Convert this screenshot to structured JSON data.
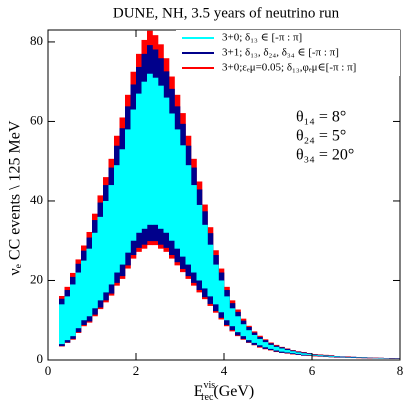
{
  "chart_data": {
    "type": "histogram",
    "title": "DUNE, NH, 3.5 years of neutrino run",
    "ylabel": "νₑ CC events \\ 125 MeV",
    "xlabel": {
      "base": "E",
      "sup": "vis",
      "sub": "rec",
      "unit": "(GeV)"
    },
    "annotations": [
      "θ₁₄ = 8°",
      "θ₂₄ = 5°",
      "θ₃₄ = 20°"
    ],
    "xlim": [
      0,
      8
    ],
    "xticks": [
      0,
      2,
      4,
      6,
      8
    ],
    "ylim": [
      0,
      83
    ],
    "yticks": [
      0,
      20,
      40,
      60,
      80
    ],
    "bins": [
      0.25,
      0.375,
      0.5,
      0.625,
      0.75,
      0.875,
      1,
      1.125,
      1.25,
      1.375,
      1.5,
      1.625,
      1.75,
      1.875,
      2,
      2.125,
      2.25,
      2.375,
      2.5,
      2.625,
      2.75,
      2.875,
      3,
      3.125,
      3.25,
      3.375,
      3.5,
      3.625,
      3.75,
      3.875,
      4,
      4.125,
      4.25,
      4.375,
      4.5,
      4.625,
      4.75,
      4.875,
      5,
      5.125,
      5.25,
      5.375,
      5.5,
      5.625,
      5.75,
      5.875,
      6,
      6.125,
      6.25,
      6.375,
      6.5,
      6.625,
      6.75,
      6.875,
      7,
      7.125,
      7.25,
      7.375,
      7.5,
      7.625,
      7.75,
      7.875,
      8
    ],
    "series": [
      {
        "name": "3+0; δ₁₃ ∈ [-π : π]",
        "color": "#00ffff",
        "upper": [
          14,
          16,
          19,
          22,
          25,
          28,
          32,
          36,
          40,
          44,
          49,
          53,
          58,
          63,
          67,
          70,
          72,
          71,
          69,
          66,
          62,
          58,
          54,
          49,
          44,
          39,
          34,
          29,
          24,
          20,
          16,
          13,
          11,
          9,
          7.5,
          6.3,
          5.3,
          4.5,
          3.8,
          3.3,
          2.9,
          2.5,
          2.2,
          1.9,
          1.7,
          1.5,
          1.3,
          1.2,
          1.1,
          1,
          0.9,
          0.8,
          0.75,
          0.7,
          0.65,
          0.6,
          0.55,
          0.5,
          0.5,
          0.45,
          0.4,
          0.4
        ],
        "lower": [
          4,
          5,
          6,
          8,
          10,
          11,
          13,
          15,
          17,
          19,
          22,
          24,
          27,
          30,
          32,
          33,
          34,
          34,
          33,
          32,
          30,
          28,
          26,
          24,
          22,
          20,
          18,
          16,
          14,
          12,
          10,
          8.5,
          7,
          6,
          5,
          4.3,
          3.7,
          3.2,
          2.8,
          2.4,
          2.1,
          1.9,
          1.7,
          1.5,
          1.3,
          1.2,
          1.1,
          1,
          0.9,
          0.8,
          0.75,
          0.7,
          0.65,
          0.6,
          0.55,
          0.5,
          0.5,
          0.45,
          0.4,
          0.4,
          0.35,
          0.35
        ]
      },
      {
        "name": "3+1; δ₁₃, δ₂₄, δ₃₄ ∈ [-π : π]",
        "color": "#00008b",
        "upper": [
          15.4,
          17.6,
          20.9,
          24.2,
          27.5,
          30.8,
          35.2,
          39.6,
          44,
          48.4,
          53.9,
          58.3,
          63.8,
          69.3,
          73.7,
          77,
          79.2,
          78.1,
          75.9,
          72.6,
          68.2,
          63.8,
          59.4,
          53.9,
          48.4,
          42.9,
          37.4,
          31.9,
          26.4,
          22,
          17.6,
          14.3,
          12.1,
          9.9,
          8.3,
          6.9,
          5.8,
          5,
          4.2,
          3.6,
          3.2,
          2.8,
          2.4,
          2.1,
          1.9,
          1.7,
          1.4,
          1.3,
          1.2,
          1.1,
          1,
          0.9,
          0.8,
          0.8,
          0.7,
          0.7,
          0.6,
          0.55,
          0.55,
          0.5,
          0.45,
          0.45
        ],
        "lower": [
          3.5,
          4.4,
          5.3,
          7,
          8.8,
          9.7,
          11.4,
          13.2,
          15,
          16.7,
          19.4,
          21.1,
          23.8,
          26.4,
          28.2,
          29,
          29.9,
          29.9,
          29,
          28.2,
          26.4,
          24.6,
          22.9,
          21.1,
          19.4,
          17.6,
          15.8,
          14.1,
          12.3,
          10.6,
          8.8,
          7.5,
          6.2,
          5.3,
          4.4,
          3.8,
          3.3,
          2.8,
          2.5,
          2.1,
          1.8,
          1.7,
          1.5,
          1.3,
          1.1,
          1.1,
          1,
          0.9,
          0.8,
          0.7,
          0.65,
          0.6,
          0.55,
          0.5,
          0.5,
          0.45,
          0.45,
          0.4,
          0.35,
          0.35,
          0.3,
          0.3
        ]
      },
      {
        "name": "3+0;εₑμ=0.05; δ₁₃,φₑμ∈[-π : π]",
        "color": "#ff0000",
        "upper": [
          16.1,
          18.4,
          21.9,
          25.3,
          28.8,
          32.2,
          36.8,
          41.4,
          46,
          50.6,
          56.4,
          61,
          66.7,
          72.5,
          77,
          80.5,
          82.8,
          81.7,
          79.4,
          75.9,
          71.3,
          66.7,
          62.1,
          56.4,
          50.6,
          44.9,
          39.1,
          33.4,
          27.6,
          23,
          18.4,
          15,
          12.7,
          10.4,
          8.6,
          7.2,
          6.1,
          5.2,
          4.4,
          3.8,
          3.3,
          2.9,
          2.5,
          2.2,
          2,
          1.7,
          1.5,
          1.4,
          1.3,
          1.2,
          1,
          0.9,
          0.9,
          0.8,
          0.75,
          0.7,
          0.65,
          0.6,
          0.55,
          0.5,
          0.5,
          0.45
        ],
        "lower": [
          3.4,
          4.3,
          5.1,
          6.8,
          8.5,
          9.4,
          11,
          12.8,
          14.5,
          16.2,
          18.7,
          20.4,
          23,
          25.5,
          27.2,
          28,
          28.9,
          28.9,
          28,
          27.2,
          25.5,
          23.8,
          22.1,
          20.4,
          18.7,
          17,
          15.3,
          13.6,
          11.9,
          10.2,
          8.5,
          7.2,
          6,
          5.1,
          4.3,
          3.7,
          3.1,
          2.7,
          2.4,
          2,
          1.8,
          1.6,
          1.4,
          1.3,
          1.1,
          1,
          0.9,
          0.85,
          0.75,
          0.7,
          0.6,
          0.6,
          0.55,
          0.5,
          0.45,
          0.45,
          0.4,
          0.4,
          0.35,
          0.35,
          0.3,
          0.3
        ]
      }
    ]
  }
}
